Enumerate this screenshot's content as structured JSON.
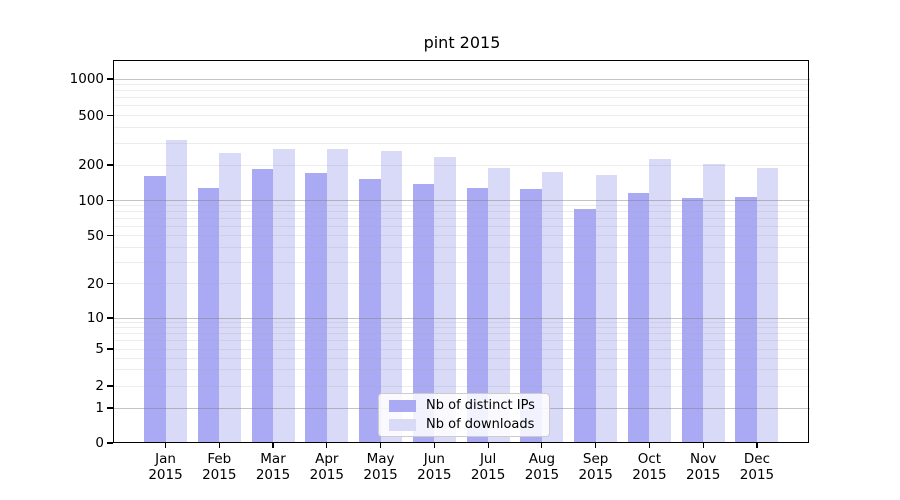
{
  "title": "pint 2015",
  "chart_data": {
    "type": "bar",
    "title": "pint 2015",
    "categories": [
      "Jan",
      "Feb",
      "Mar",
      "Apr",
      "May",
      "Jun",
      "Jul",
      "Aug",
      "Sep",
      "Oct",
      "Nov",
      "Dec"
    ],
    "x_tick_year": "2015",
    "series": [
      {
        "name": "Nb of distinct IPs",
        "color": "#aaaaf4",
        "values": [
          160,
          127,
          185,
          170,
          152,
          137,
          127,
          125,
          84,
          115,
          106,
          108
        ]
      },
      {
        "name": "Nb of downloads",
        "color": "#d9d9f8",
        "values": [
          320,
          250,
          270,
          270,
          258,
          230,
          190,
          175,
          165,
          225,
          202,
          190
        ]
      }
    ],
    "yscale": "symlog",
    "yticks": [
      0,
      1,
      2,
      5,
      10,
      20,
      50,
      100,
      200,
      500,
      1000
    ],
    "ylim": [
      0,
      1400
    ],
    "grid": true,
    "legend_position": "lower center",
    "background_color": "#ffffff",
    "major_grid_color": "#c9c9c9",
    "minor_grid_color": "#e8e8e8"
  }
}
